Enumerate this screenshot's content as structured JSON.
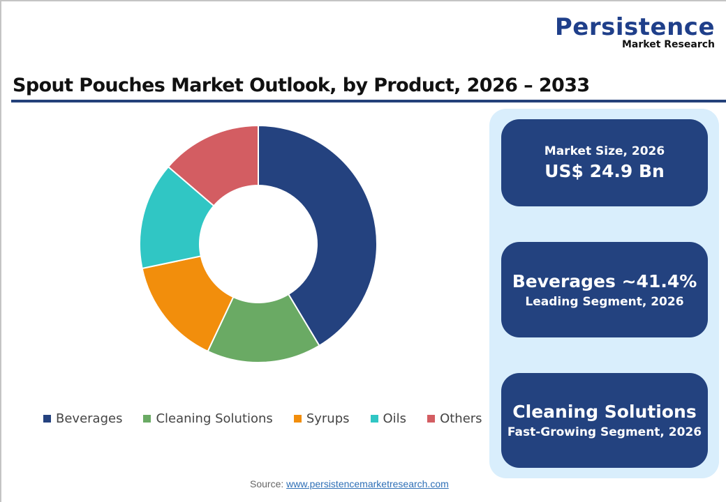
{
  "logo": {
    "main": "Persistence",
    "sub": "Market Research"
  },
  "title": "Spout Pouches Market Outlook, by Product, 2026 – 2033",
  "legend": [
    {
      "label": "Beverages",
      "color": "#24427f"
    },
    {
      "label": "Cleaning Solutions",
      "color": "#6aaa64"
    },
    {
      "label": "Syrups",
      "color": "#f28e0c"
    },
    {
      "label": "Oils",
      "color": "#30c6c4"
    },
    {
      "label": "Others",
      "color": "#d35d62"
    }
  ],
  "cards": [
    {
      "line1": "Market Size, 2026",
      "line2": "US$ 24.9 Bn"
    },
    {
      "line1": "Beverages ~41.4%",
      "line2": "Leading Segment, 2026"
    },
    {
      "line1": "Cleaning Solutions",
      "line2": "Fast-Growing Segment, 2026"
    }
  ],
  "source": {
    "label": "Source:",
    "link": "www.persistencemarketresearch.com"
  },
  "chart_data": {
    "type": "pie",
    "subtype": "donut",
    "title": "Spout Pouches Market Outlook, by Product, 2026 – 2033",
    "categories": [
      "Beverages",
      "Cleaning Solutions",
      "Syrups",
      "Oils",
      "Others"
    ],
    "values": [
      41.4,
      15.6,
      14.7,
      14.6,
      13.7
    ],
    "colors": [
      "#24427f",
      "#6aaa64",
      "#f28e0c",
      "#30c6c4",
      "#d35d62"
    ],
    "unit": "%",
    "legend_position": "bottom",
    "note": "Only Beverages (~41.4%) is labeled; other shares estimated from slice angles"
  }
}
